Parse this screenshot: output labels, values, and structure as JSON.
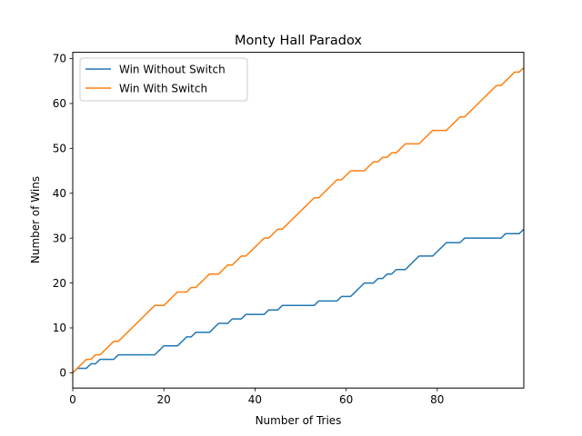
{
  "chart_data": {
    "type": "line",
    "title": "Monty Hall Paradox",
    "xlabel": "Number of Tries",
    "ylabel": "Number of Wins",
    "xlim": [
      0,
      99
    ],
    "ylim": [
      -3.4,
      71.4
    ],
    "xticks": [
      0,
      20,
      40,
      60,
      80
    ],
    "yticks": [
      0,
      10,
      20,
      30,
      40,
      50,
      60,
      70
    ],
    "grid": false,
    "legend_position": "top-left",
    "series": [
      {
        "name": "Win Without Switch",
        "color": "#1f77b4",
        "x": [
          0,
          1,
          2,
          3,
          4,
          5,
          6,
          7,
          8,
          9,
          10,
          11,
          12,
          13,
          14,
          15,
          16,
          17,
          18,
          19,
          20,
          21,
          22,
          23,
          24,
          25,
          26,
          27,
          28,
          29,
          30,
          31,
          32,
          33,
          34,
          35,
          36,
          37,
          38,
          39,
          40,
          41,
          42,
          43,
          44,
          45,
          46,
          47,
          48,
          49,
          50,
          51,
          52,
          53,
          54,
          55,
          56,
          57,
          58,
          59,
          60,
          61,
          62,
          63,
          64,
          65,
          66,
          67,
          68,
          69,
          70,
          71,
          72,
          73,
          74,
          75,
          76,
          77,
          78,
          79,
          80,
          81,
          82,
          83,
          84,
          85,
          86,
          87,
          88,
          89,
          90,
          91,
          92,
          93,
          94,
          95,
          96,
          97,
          98,
          99
        ],
        "y": [
          0,
          1,
          1,
          1,
          2,
          2,
          3,
          3,
          3,
          3,
          4,
          4,
          4,
          4,
          4,
          4,
          4,
          4,
          4,
          5,
          6,
          6,
          6,
          6,
          7,
          8,
          8,
          9,
          9,
          9,
          9,
          10,
          11,
          11,
          11,
          12,
          12,
          12,
          13,
          13,
          13,
          13,
          13,
          14,
          14,
          14,
          15,
          15,
          15,
          15,
          15,
          15,
          15,
          15,
          16,
          16,
          16,
          16,
          16,
          17,
          17,
          17,
          18,
          19,
          20,
          20,
          20,
          21,
          21,
          22,
          22,
          23,
          23,
          23,
          24,
          25,
          26,
          26,
          26,
          26,
          27,
          28,
          29,
          29,
          29,
          29,
          30,
          30,
          30,
          30,
          30,
          30,
          30,
          30,
          30,
          31,
          31,
          31,
          31,
          32
        ]
      },
      {
        "name": "Win With Switch",
        "color": "#ff7f0e",
        "x": [
          0,
          1,
          2,
          3,
          4,
          5,
          6,
          7,
          8,
          9,
          10,
          11,
          12,
          13,
          14,
          15,
          16,
          17,
          18,
          19,
          20,
          21,
          22,
          23,
          24,
          25,
          26,
          27,
          28,
          29,
          30,
          31,
          32,
          33,
          34,
          35,
          36,
          37,
          38,
          39,
          40,
          41,
          42,
          43,
          44,
          45,
          46,
          47,
          48,
          49,
          50,
          51,
          52,
          53,
          54,
          55,
          56,
          57,
          58,
          59,
          60,
          61,
          62,
          63,
          64,
          65,
          66,
          67,
          68,
          69,
          70,
          71,
          72,
          73,
          74,
          75,
          76,
          77,
          78,
          79,
          80,
          81,
          82,
          83,
          84,
          85,
          86,
          87,
          88,
          89,
          90,
          91,
          92,
          93,
          94,
          95,
          96,
          97,
          98,
          99
        ],
        "y": [
          0,
          1,
          2,
          3,
          3,
          4,
          4,
          5,
          6,
          7,
          7,
          8,
          9,
          10,
          11,
          12,
          13,
          14,
          15,
          15,
          15,
          16,
          17,
          18,
          18,
          18,
          19,
          19,
          20,
          21,
          22,
          22,
          22,
          23,
          24,
          24,
          25,
          26,
          26,
          27,
          28,
          29,
          30,
          30,
          31,
          32,
          32,
          33,
          34,
          35,
          36,
          37,
          38,
          39,
          39,
          40,
          41,
          42,
          43,
          43,
          44,
          45,
          45,
          45,
          45,
          46,
          47,
          47,
          48,
          48,
          49,
          49,
          50,
          51,
          51,
          51,
          51,
          52,
          53,
          54,
          54,
          54,
          54,
          55,
          56,
          57,
          57,
          58,
          59,
          60,
          61,
          62,
          63,
          64,
          64,
          65,
          66,
          67,
          67,
          68
        ]
      }
    ]
  }
}
